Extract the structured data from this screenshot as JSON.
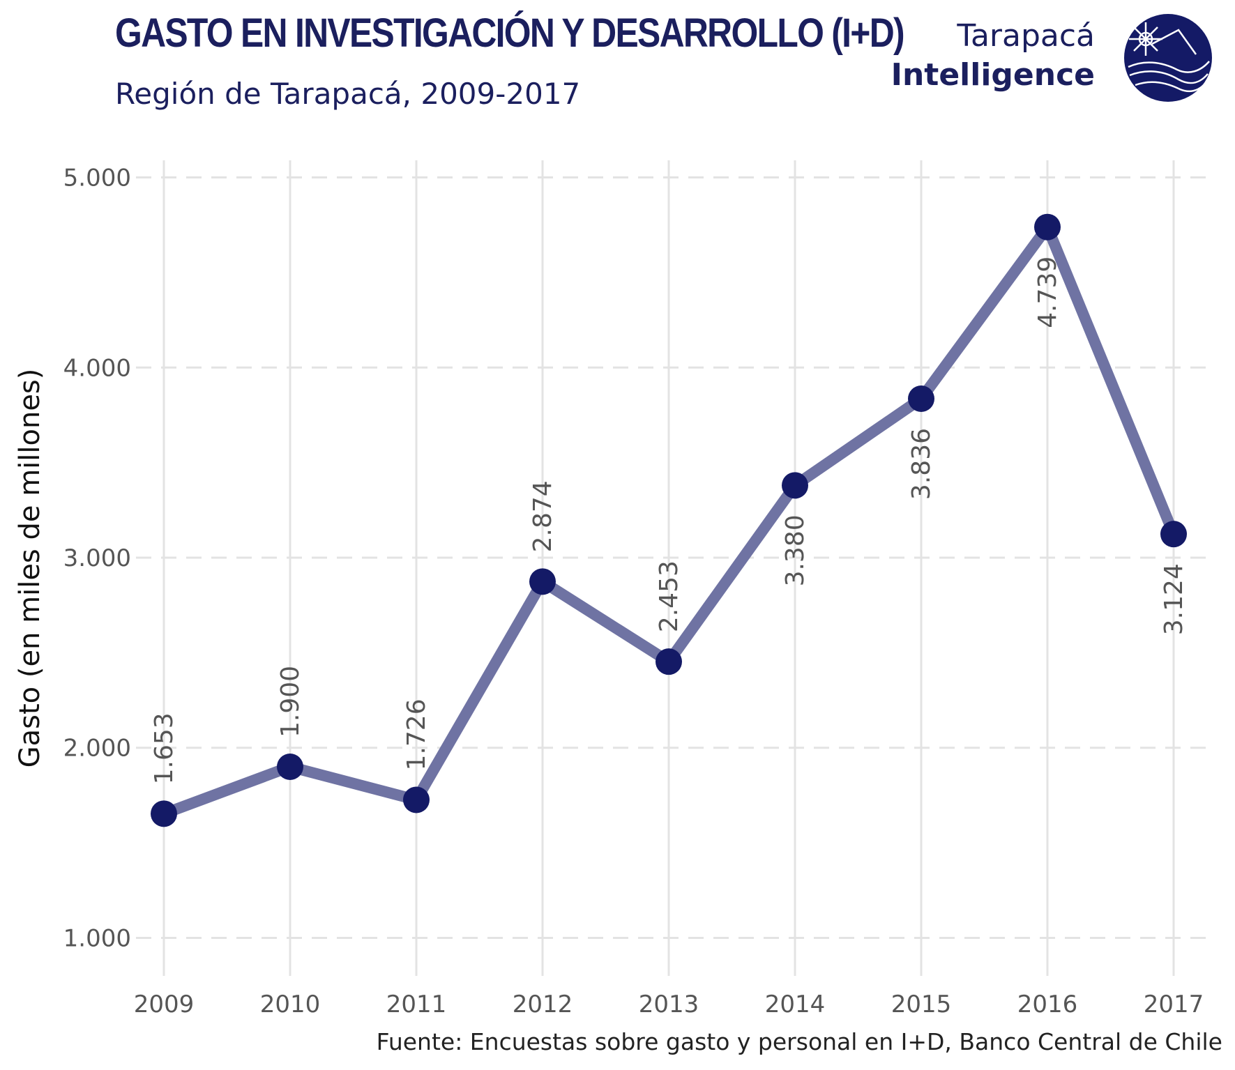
{
  "header": {
    "title": "GASTO EN INVESTIGACIÓN Y DESARROLLO (I+D)",
    "subtitle": "Región de Tarapacá, 2009-2017",
    "brand_line1": "Tarapacá",
    "brand_line2": "Intelligence"
  },
  "footer": {
    "source": "Fuente: Encuestas sobre gasto y personal en I+D, Banco Central de Chile"
  },
  "colors": {
    "title": "#1b1f5e",
    "line": "#6f73a3",
    "point": "#141a66",
    "grid": "#e3e3e3",
    "label": "#555555"
  },
  "logo": {
    "icon": "globe-compass-logo-icon"
  },
  "chart_data": {
    "type": "line",
    "ylabel": "Gasto (en miles de millones)",
    "xlabel": "",
    "ylim": [
      800,
      5200
    ],
    "x": [
      "2009",
      "2010",
      "2011",
      "2012",
      "2013",
      "2014",
      "2015",
      "2016",
      "2017"
    ],
    "yticks": [
      1000,
      2000,
      3000,
      4000,
      5000
    ],
    "ytick_labels": [
      "1.000",
      "2.000",
      "3.000",
      "4.000",
      "5.000"
    ],
    "grid": true,
    "series": [
      {
        "values": [
          1653,
          1900,
          1726,
          2874,
          2453,
          3380,
          3836,
          4739,
          3124
        ],
        "labels": [
          "1.653",
          "1.900",
          "1.726",
          "2.874",
          "2.453",
          "3.380",
          "3.836",
          "4.739",
          "3.124"
        ],
        "label_positions": [
          "above",
          "above",
          "above",
          "above",
          "above",
          "below",
          "below",
          "below",
          "below"
        ]
      }
    ]
  }
}
